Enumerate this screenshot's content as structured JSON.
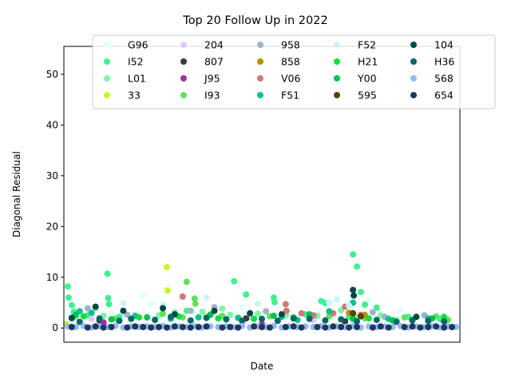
{
  "chart_data": {
    "type": "scatter",
    "title": "Top 20 Follow Up in 2022",
    "xlabel": "Date",
    "ylabel": "Diagonal Residual",
    "xlim": [
      0,
      100
    ],
    "ylim": [
      -2.8,
      55.5
    ],
    "y_ticks": [
      0,
      10,
      20,
      30,
      40,
      50
    ],
    "x_ticks_visible": false,
    "grid": false,
    "legend_position": "top",
    "legend_columns": 5,
    "marker_size": 7,
    "series": [
      {
        "name": "G96",
        "color": "#e0ffff",
        "points": [
          [
            12,
            3.1
          ],
          [
            15,
            2.5
          ],
          [
            20,
            6.5
          ],
          [
            22,
            4.8
          ],
          [
            33,
            3.0
          ],
          [
            45,
            4.1
          ],
          [
            57,
            2.6
          ],
          [
            68,
            2.2
          ],
          [
            77,
            5.5
          ],
          [
            85,
            3.6
          ]
        ]
      },
      {
        "name": "I52",
        "color": "#40f090",
        "points": [
          [
            1,
            8.2
          ],
          [
            1.2,
            6.0
          ],
          [
            2,
            4.5
          ],
          [
            2.5,
            3.2
          ],
          [
            6,
            2.5
          ],
          [
            11,
            10.7
          ],
          [
            11.2,
            5.9
          ],
          [
            11.4,
            4.7
          ],
          [
            14,
            2.2
          ],
          [
            31,
            3.4
          ],
          [
            37,
            2.7
          ],
          [
            43,
            9.2
          ],
          [
            46,
            6.6
          ],
          [
            53,
            6.0
          ],
          [
            53.2,
            5.1
          ],
          [
            61,
            2.7
          ],
          [
            62,
            2.3
          ],
          [
            65,
            5.3
          ],
          [
            66,
            4.9
          ],
          [
            72,
            2.2
          ],
          [
            73,
            14.5
          ],
          [
            74,
            12.1
          ],
          [
            75,
            7.1
          ],
          [
            76,
            4.6
          ],
          [
            79,
            4.0
          ],
          [
            87,
            2.2
          ],
          [
            95,
            1.8
          ]
        ]
      },
      {
        "name": "L01",
        "color": "#7ff5a6",
        "points": [
          [
            3,
            2.2
          ],
          [
            8,
            3.9
          ],
          [
            10,
            2.4
          ],
          [
            24,
            2.5
          ],
          [
            28,
            3.1
          ],
          [
            35,
            3.2
          ],
          [
            40,
            3.8
          ],
          [
            42,
            2.6
          ],
          [
            49,
            2.8
          ],
          [
            56,
            2.5
          ],
          [
            64,
            2.4
          ],
          [
            70,
            3.5
          ],
          [
            74,
            2.1
          ],
          [
            80,
            2.5
          ],
          [
            84,
            1.6
          ]
        ]
      },
      {
        "name": "33",
        "color": "#c8f52b",
        "points": [
          [
            0.5,
            0.8
          ],
          [
            26,
            12.0
          ],
          [
            26.2,
            7.4
          ],
          [
            36,
            2.2
          ]
        ]
      },
      {
        "name": "204",
        "color": "#e0c8ff",
        "points": [
          [
            7,
            1.8
          ],
          [
            47,
            2.1
          ],
          [
            63,
            1.5
          ]
        ]
      },
      {
        "name": "807",
        "color": "#3a3a3a",
        "points": [
          [
            9,
            1.5
          ],
          [
            46,
            1.9
          ],
          [
            71,
            1.3
          ]
        ]
      },
      {
        "name": "J95",
        "color": "#a030a0",
        "points": [
          [
            10,
            1.1
          ],
          [
            50,
            0.8
          ]
        ]
      },
      {
        "name": "I93",
        "color": "#60e060",
        "points": [
          [
            13,
            1.9
          ],
          [
            25,
            2.8
          ],
          [
            30,
            2.1
          ],
          [
            31,
            9.1
          ],
          [
            33,
            5.8
          ],
          [
            33.2,
            4.8
          ],
          [
            40,
            2.4
          ],
          [
            52,
            2.3
          ],
          [
            67,
            2.3
          ],
          [
            76,
            1.9
          ],
          [
            86,
            2.1
          ],
          [
            94,
            2.3
          ],
          [
            97,
            1.6
          ]
        ]
      },
      {
        "name": "958",
        "color": "#a0b4c8",
        "points": [
          [
            6,
            3.9
          ],
          [
            16,
            2.6
          ],
          [
            32,
            3.4
          ],
          [
            38,
            4.1
          ],
          [
            51,
            3.3
          ],
          [
            78,
            3.1
          ],
          [
            81,
            2.2
          ],
          [
            91,
            2.5
          ]
        ]
      },
      {
        "name": "858",
        "color": "#b8900a",
        "points": [
          [
            72,
            3.0
          ],
          [
            76,
            2.6
          ]
        ]
      },
      {
        "name": "V06",
        "color": "#d07878",
        "points": [
          [
            30,
            6.2
          ],
          [
            56,
            4.7
          ],
          [
            56.2,
            3.4
          ],
          [
            60,
            2.9
          ],
          [
            63,
            2.5
          ],
          [
            68,
            2.9
          ],
          [
            71,
            4.2
          ],
          [
            75,
            2.6
          ]
        ]
      },
      {
        "name": "F51",
        "color": "#10c090",
        "points": [
          [
            4,
            3.3
          ],
          [
            7,
            3.0
          ],
          [
            18,
            2.4
          ],
          [
            27,
            1.8
          ],
          [
            34,
            2.1
          ],
          [
            44,
            2.0
          ],
          [
            55,
            2.2
          ],
          [
            59,
            1.6
          ],
          [
            67,
            3.3
          ],
          [
            73,
            5.0
          ],
          [
            82,
            1.8
          ],
          [
            92,
            1.9
          ]
        ]
      },
      {
        "name": "F52",
        "color": "#c8f5ff",
        "points": [
          [
            15,
            4.9
          ],
          [
            25,
            4.6
          ],
          [
            36,
            6.0
          ],
          [
            49,
            4.8
          ],
          [
            67,
            5.0
          ],
          [
            69,
            5.6
          ],
          [
            72,
            4.4
          ]
        ]
      },
      {
        "name": "H21",
        "color": "#10e040",
        "points": [
          [
            2,
            1.9
          ],
          [
            5,
            2.3
          ],
          [
            19,
            2.1
          ],
          [
            29,
            2.3
          ],
          [
            39,
            1.9
          ],
          [
            48,
            1.8
          ],
          [
            58,
            2.1
          ],
          [
            77,
            1.9
          ],
          [
            88,
            1.6
          ],
          [
            96,
            2.2
          ]
        ]
      },
      {
        "name": "Y00",
        "color": "#00c050",
        "points": [
          [
            3,
            2.6
          ],
          [
            12,
            1.7
          ],
          [
            21,
            2.1
          ],
          [
            37,
            2.6
          ],
          [
            53,
            2.4
          ],
          [
            62,
            2.7
          ],
          [
            73,
            1.8
          ],
          [
            83,
            1.5
          ],
          [
            93,
            1.9
          ]
        ]
      },
      {
        "name": "595",
        "color": "#554400",
        "points": [
          [
            73,
            2.9
          ],
          [
            75,
            2.3
          ]
        ]
      },
      {
        "name": "104",
        "color": "#004848",
        "points": [
          [
            2,
            2.0
          ],
          [
            8,
            4.2
          ],
          [
            15,
            3.4
          ],
          [
            25,
            3.9
          ],
          [
            28,
            2.7
          ],
          [
            38,
            3.4
          ],
          [
            47,
            2.9
          ],
          [
            55,
            2.7
          ],
          [
            73,
            7.5
          ],
          [
            73.2,
            6.4
          ],
          [
            89,
            2.2
          ]
        ]
      },
      {
        "name": "H36",
        "color": "#006868",
        "points": [
          [
            4,
            1.2
          ],
          [
            9,
            1.9
          ],
          [
            14,
            1.4
          ],
          [
            17,
            1.8
          ],
          [
            23,
            1.6
          ],
          [
            27,
            2.2
          ],
          [
            32,
            1.5
          ],
          [
            36,
            2.0
          ],
          [
            41,
            1.7
          ],
          [
            45,
            1.4
          ],
          [
            50,
            1.8
          ],
          [
            54,
            1.4
          ],
          [
            58,
            1.9
          ],
          [
            62,
            1.8
          ],
          [
            66,
            1.5
          ],
          [
            70,
            1.7
          ],
          [
            74,
            1.3
          ],
          [
            79,
            1.6
          ],
          [
            84,
            1.2
          ],
          [
            88,
            1.5
          ],
          [
            92,
            1.4
          ],
          [
            96,
            1.3
          ]
        ]
      },
      {
        "name": "568",
        "color": "#9ab8f0",
        "points": [
          [
            1,
            0.3
          ],
          [
            3,
            0.2
          ],
          [
            5,
            0.4
          ],
          [
            7,
            0.1
          ],
          [
            9,
            0.3
          ],
          [
            11,
            0.2
          ],
          [
            13,
            0.4
          ],
          [
            15,
            0.1
          ],
          [
            17,
            0.3
          ],
          [
            19,
            0.2
          ],
          [
            21,
            0.3
          ],
          [
            23,
            0.2
          ],
          [
            25,
            0.4
          ],
          [
            27,
            0.1
          ],
          [
            29,
            0.3
          ],
          [
            31,
            0.2
          ],
          [
            33,
            0.4
          ],
          [
            35,
            0.1
          ],
          [
            37,
            0.3
          ],
          [
            39,
            0.2
          ],
          [
            41,
            0.3
          ],
          [
            43,
            0.2
          ],
          [
            45,
            0.4
          ],
          [
            47,
            0.1
          ],
          [
            49,
            0.3
          ],
          [
            51,
            0.2
          ],
          [
            53,
            0.4
          ],
          [
            55,
            0.1
          ],
          [
            57,
            0.3
          ],
          [
            59,
            0.2
          ],
          [
            61,
            0.3
          ],
          [
            63,
            0.2
          ],
          [
            65,
            0.4
          ],
          [
            67,
            0.1
          ],
          [
            69,
            0.3
          ],
          [
            71,
            0.2
          ],
          [
            73,
            0.4
          ],
          [
            75,
            0.1
          ],
          [
            77,
            0.3
          ],
          [
            79,
            0.2
          ],
          [
            81,
            0.3
          ],
          [
            83,
            0.2
          ],
          [
            85,
            0.4
          ],
          [
            87,
            0.1
          ],
          [
            89,
            0.3
          ],
          [
            91,
            0.2
          ],
          [
            93,
            0.4
          ],
          [
            95,
            0.1
          ],
          [
            97,
            0.3
          ],
          [
            99,
            0.2
          ]
        ]
      },
      {
        "name": "654",
        "color": "#1c3a5c",
        "points": [
          [
            2,
            0.2
          ],
          [
            6,
            0.1
          ],
          [
            8,
            0.3
          ],
          [
            10,
            0.1
          ],
          [
            12,
            0.2
          ],
          [
            16,
            0.1
          ],
          [
            18,
            0.3
          ],
          [
            20,
            0.2
          ],
          [
            22,
            0.1
          ],
          [
            24,
            0.2
          ],
          [
            26,
            0.1
          ],
          [
            28,
            0.3
          ],
          [
            30,
            0.2
          ],
          [
            32,
            0.1
          ],
          [
            34,
            0.2
          ],
          [
            36,
            0.3
          ],
          [
            40,
            0.1
          ],
          [
            42,
            0.2
          ],
          [
            44,
            0.1
          ],
          [
            48,
            0.3
          ],
          [
            50,
            0.2
          ],
          [
            52,
            0.1
          ],
          [
            56,
            0.2
          ],
          [
            58,
            0.3
          ],
          [
            60,
            0.1
          ],
          [
            64,
            0.2
          ],
          [
            66,
            0.1
          ],
          [
            68,
            0.3
          ],
          [
            70,
            0.2
          ],
          [
            72,
            0.1
          ],
          [
            74,
            0.2
          ],
          [
            78,
            0.1
          ],
          [
            80,
            0.3
          ],
          [
            82,
            0.1
          ],
          [
            86,
            0.2
          ],
          [
            88,
            0.3
          ],
          [
            90,
            0.1
          ],
          [
            92,
            0.2
          ],
          [
            94,
            0.3
          ],
          [
            96,
            0.1
          ],
          [
            98,
            0.2
          ]
        ]
      }
    ]
  }
}
